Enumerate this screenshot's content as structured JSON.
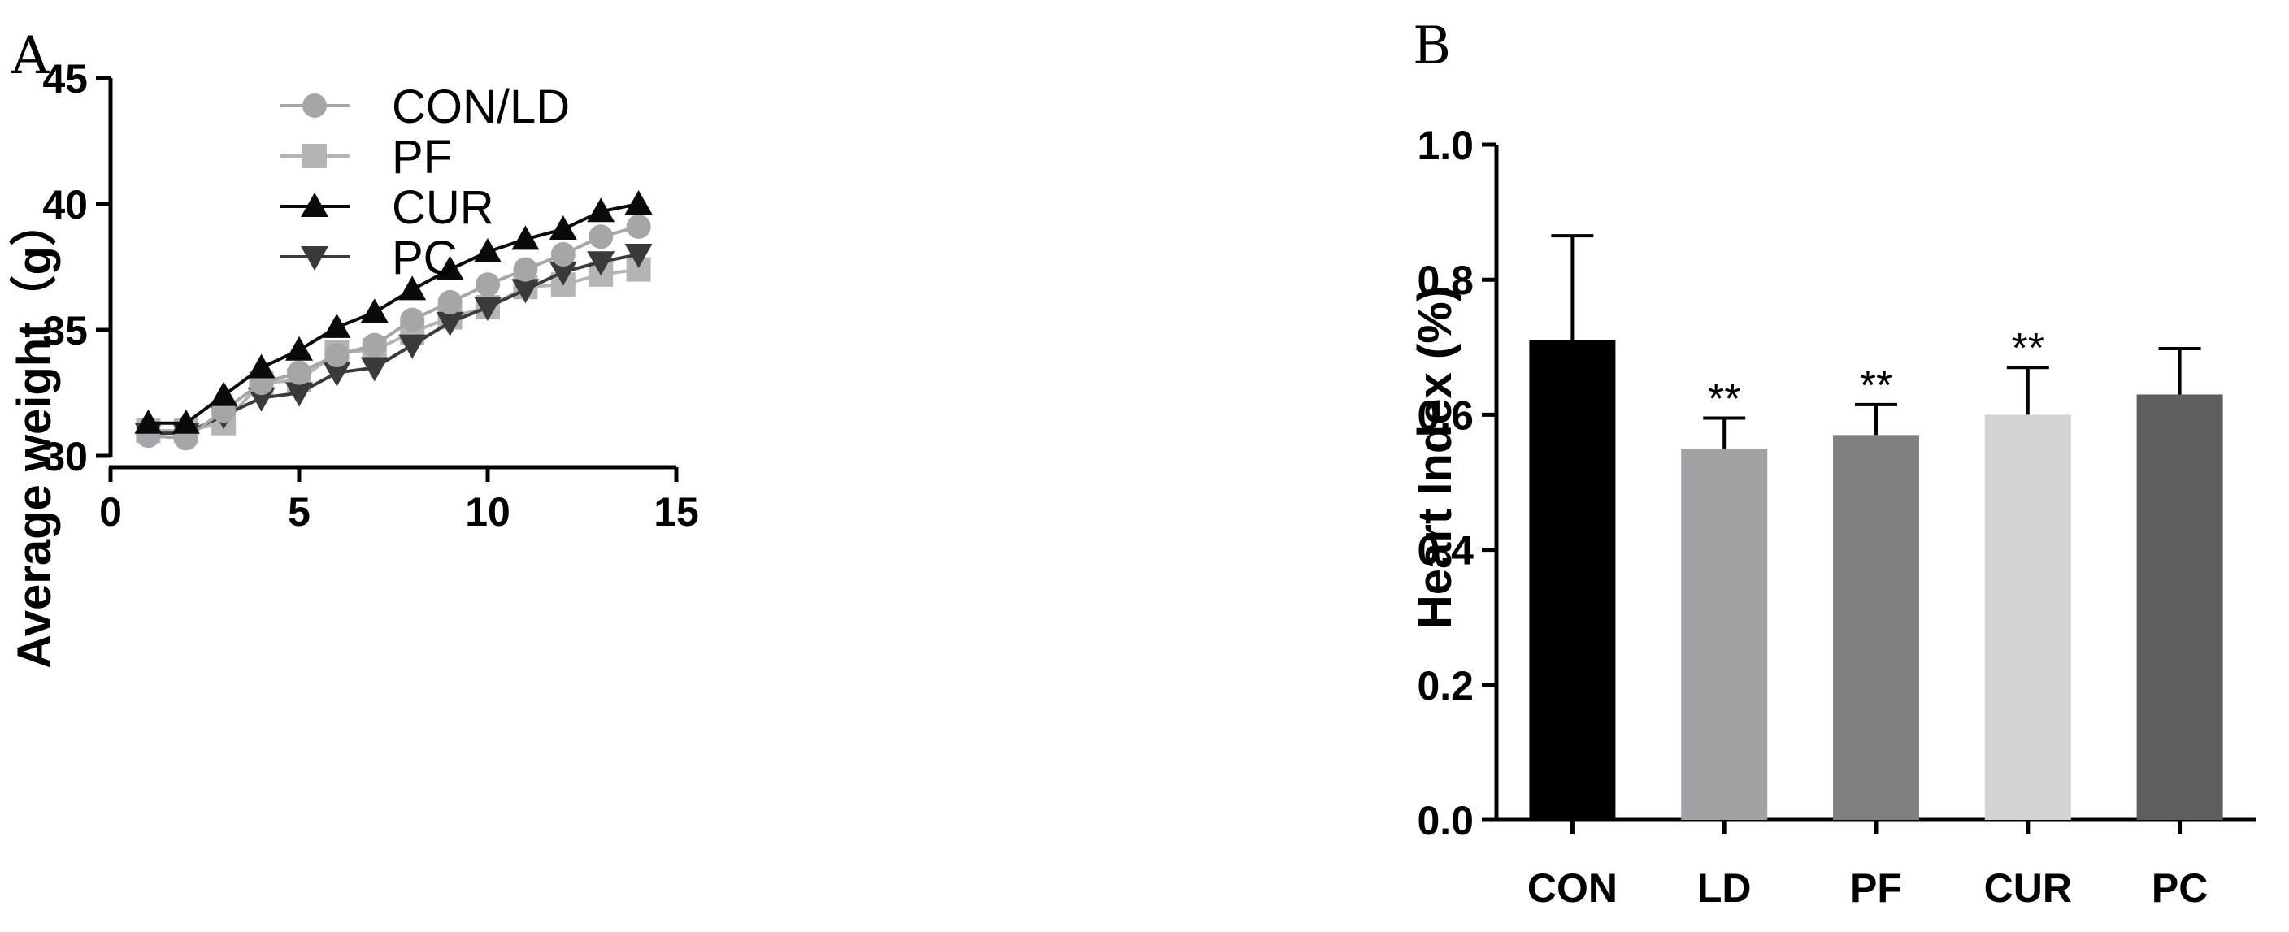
{
  "chart_data": [
    {
      "panel": "A",
      "type": "line",
      "title": "",
      "xlabel": "",
      "ylabel": "Average weight（g）",
      "xlim": [
        0,
        15
      ],
      "ylim": [
        30,
        45
      ],
      "xticks": [
        0,
        5,
        10,
        15
      ],
      "yticks": [
        30,
        35,
        40,
        45
      ],
      "x": [
        1,
        2,
        3,
        4,
        5,
        6,
        7,
        8,
        9,
        10,
        11,
        12,
        13,
        14
      ],
      "series": [
        {
          "name": "CON/LD",
          "marker": "circle",
          "color": "#a6a6a8",
          "values": [
            30.8,
            30.7,
            31.8,
            32.9,
            33.3,
            34.0,
            34.4,
            35.4,
            36.1,
            36.8,
            37.4,
            38.0,
            38.7,
            39.1
          ]
        },
        {
          "name": "PF",
          "marker": "square",
          "color": "#b4b4b6",
          "values": [
            31.0,
            31.0,
            31.3,
            32.9,
            33.0,
            34.1,
            34.2,
            34.9,
            35.5,
            35.9,
            36.7,
            36.8,
            37.2,
            37.4
          ]
        },
        {
          "name": "CUR",
          "marker": "triangle-up",
          "color": "#0a0a0a",
          "values": [
            31.3,
            31.3,
            32.4,
            33.5,
            34.2,
            35.1,
            35.7,
            36.6,
            37.4,
            38.1,
            38.6,
            39.0,
            39.7,
            40.0
          ]
        },
        {
          "name": "PC",
          "marker": "triangle-down",
          "color": "#3a3a3a",
          "values": [
            30.9,
            30.9,
            31.6,
            32.3,
            32.5,
            33.3,
            33.5,
            34.4,
            35.3,
            35.9,
            36.6,
            37.3,
            37.7,
            38.0
          ]
        }
      ],
      "legend_position": "top-left"
    },
    {
      "panel": "B",
      "type": "bar",
      "title": "",
      "xlabel": "",
      "ylabel": "Heart Index (%)",
      "ylim": [
        0.0,
        1.0
      ],
      "yticks": [
        "0.0",
        "0.2",
        "0.4",
        "0.6",
        "0.8",
        "1.0"
      ],
      "categories": [
        "CON",
        "LD",
        "PF",
        "CUR",
        "PC"
      ],
      "values": [
        0.71,
        0.55,
        0.57,
        0.6,
        0.63
      ],
      "errors": [
        0.155,
        0.045,
        0.045,
        0.07,
        0.068
      ],
      "colors": [
        "#000000",
        "#a2a2a4",
        "#808080",
        "#d3d3d3",
        "#5e5e5e"
      ],
      "significance": [
        "",
        "**",
        "**",
        "**",
        ""
      ]
    }
  ]
}
